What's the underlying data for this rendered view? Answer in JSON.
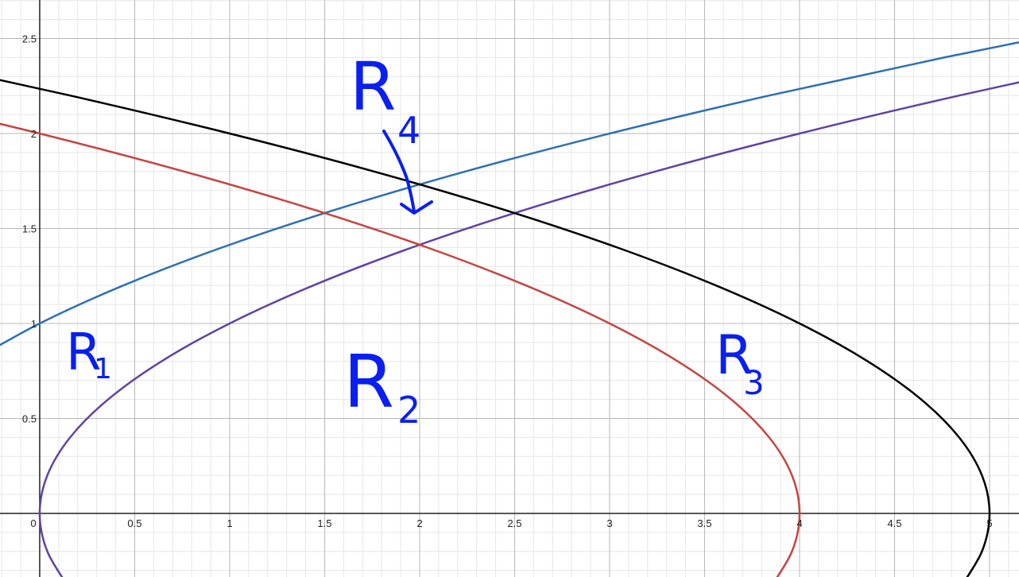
{
  "chart_data": {
    "type": "line",
    "xlim": [
      -0.209,
      5.155
    ],
    "ylim": [
      -0.335,
      2.703
    ],
    "xticks": [
      0,
      0.5,
      1,
      1.5,
      2,
      2.5,
      3,
      3.5,
      4,
      4.5,
      5
    ],
    "yticks": [
      0.5,
      1,
      1.5,
      2,
      2.5
    ],
    "grid": true,
    "minor_grid_step": 0.1,
    "series": [
      {
        "color": "#2d70b3",
        "x": [
          -0.36,
          0,
          0.44,
          0.96,
          1.56,
          2.24,
          3,
          3.84,
          4.76,
          5.76
        ],
        "values": [
          0.8,
          1.0,
          1.2,
          1.4,
          1.6,
          1.8,
          2.0,
          2.2,
          2.4,
          2.6
        ]
      },
      {
        "color": "#6042a6",
        "x": [
          0.16,
          0.04,
          0,
          0.04,
          0.16,
          0.36,
          0.64,
          1,
          1.44,
          1.96,
          2.56,
          3.24,
          4,
          4.84,
          5.76
        ],
        "values": [
          -0.4,
          -0.2,
          0,
          0.2,
          0.4,
          0.6,
          0.8,
          1.0,
          1.2,
          1.4,
          1.6,
          1.8,
          2.0,
          2.2,
          2.4
        ]
      },
      {
        "color": "#c74440",
        "x": [
          3.84,
          3.96,
          4,
          3.96,
          3.84,
          3.64,
          3.36,
          3,
          2.56,
          2.04,
          1.44,
          0.76,
          0,
          -0.84
        ],
        "values": [
          -0.4,
          -0.2,
          0,
          0.2,
          0.4,
          0.6,
          0.8,
          1.0,
          1.2,
          1.4,
          1.6,
          1.8,
          2.0,
          2.2
        ]
      },
      {
        "color": "#000000",
        "x": [
          4.84,
          4.96,
          5,
          4.96,
          4.84,
          4.64,
          4.36,
          4,
          3.56,
          3.04,
          2.44,
          1.76,
          1,
          0.16,
          -0.76
        ],
        "values": [
          -0.4,
          -0.2,
          0,
          0.2,
          0.4,
          0.6,
          0.8,
          1.0,
          1.2,
          1.4,
          1.6,
          1.8,
          2.0,
          2.2,
          2.4
        ]
      }
    ],
    "annotations": [
      {
        "text": "R",
        "subscript": "4"
      },
      {
        "text": "R",
        "subscript": "1"
      },
      {
        "text": "R",
        "subscript": "2"
      },
      {
        "text": "R",
        "subscript": "3"
      }
    ]
  }
}
